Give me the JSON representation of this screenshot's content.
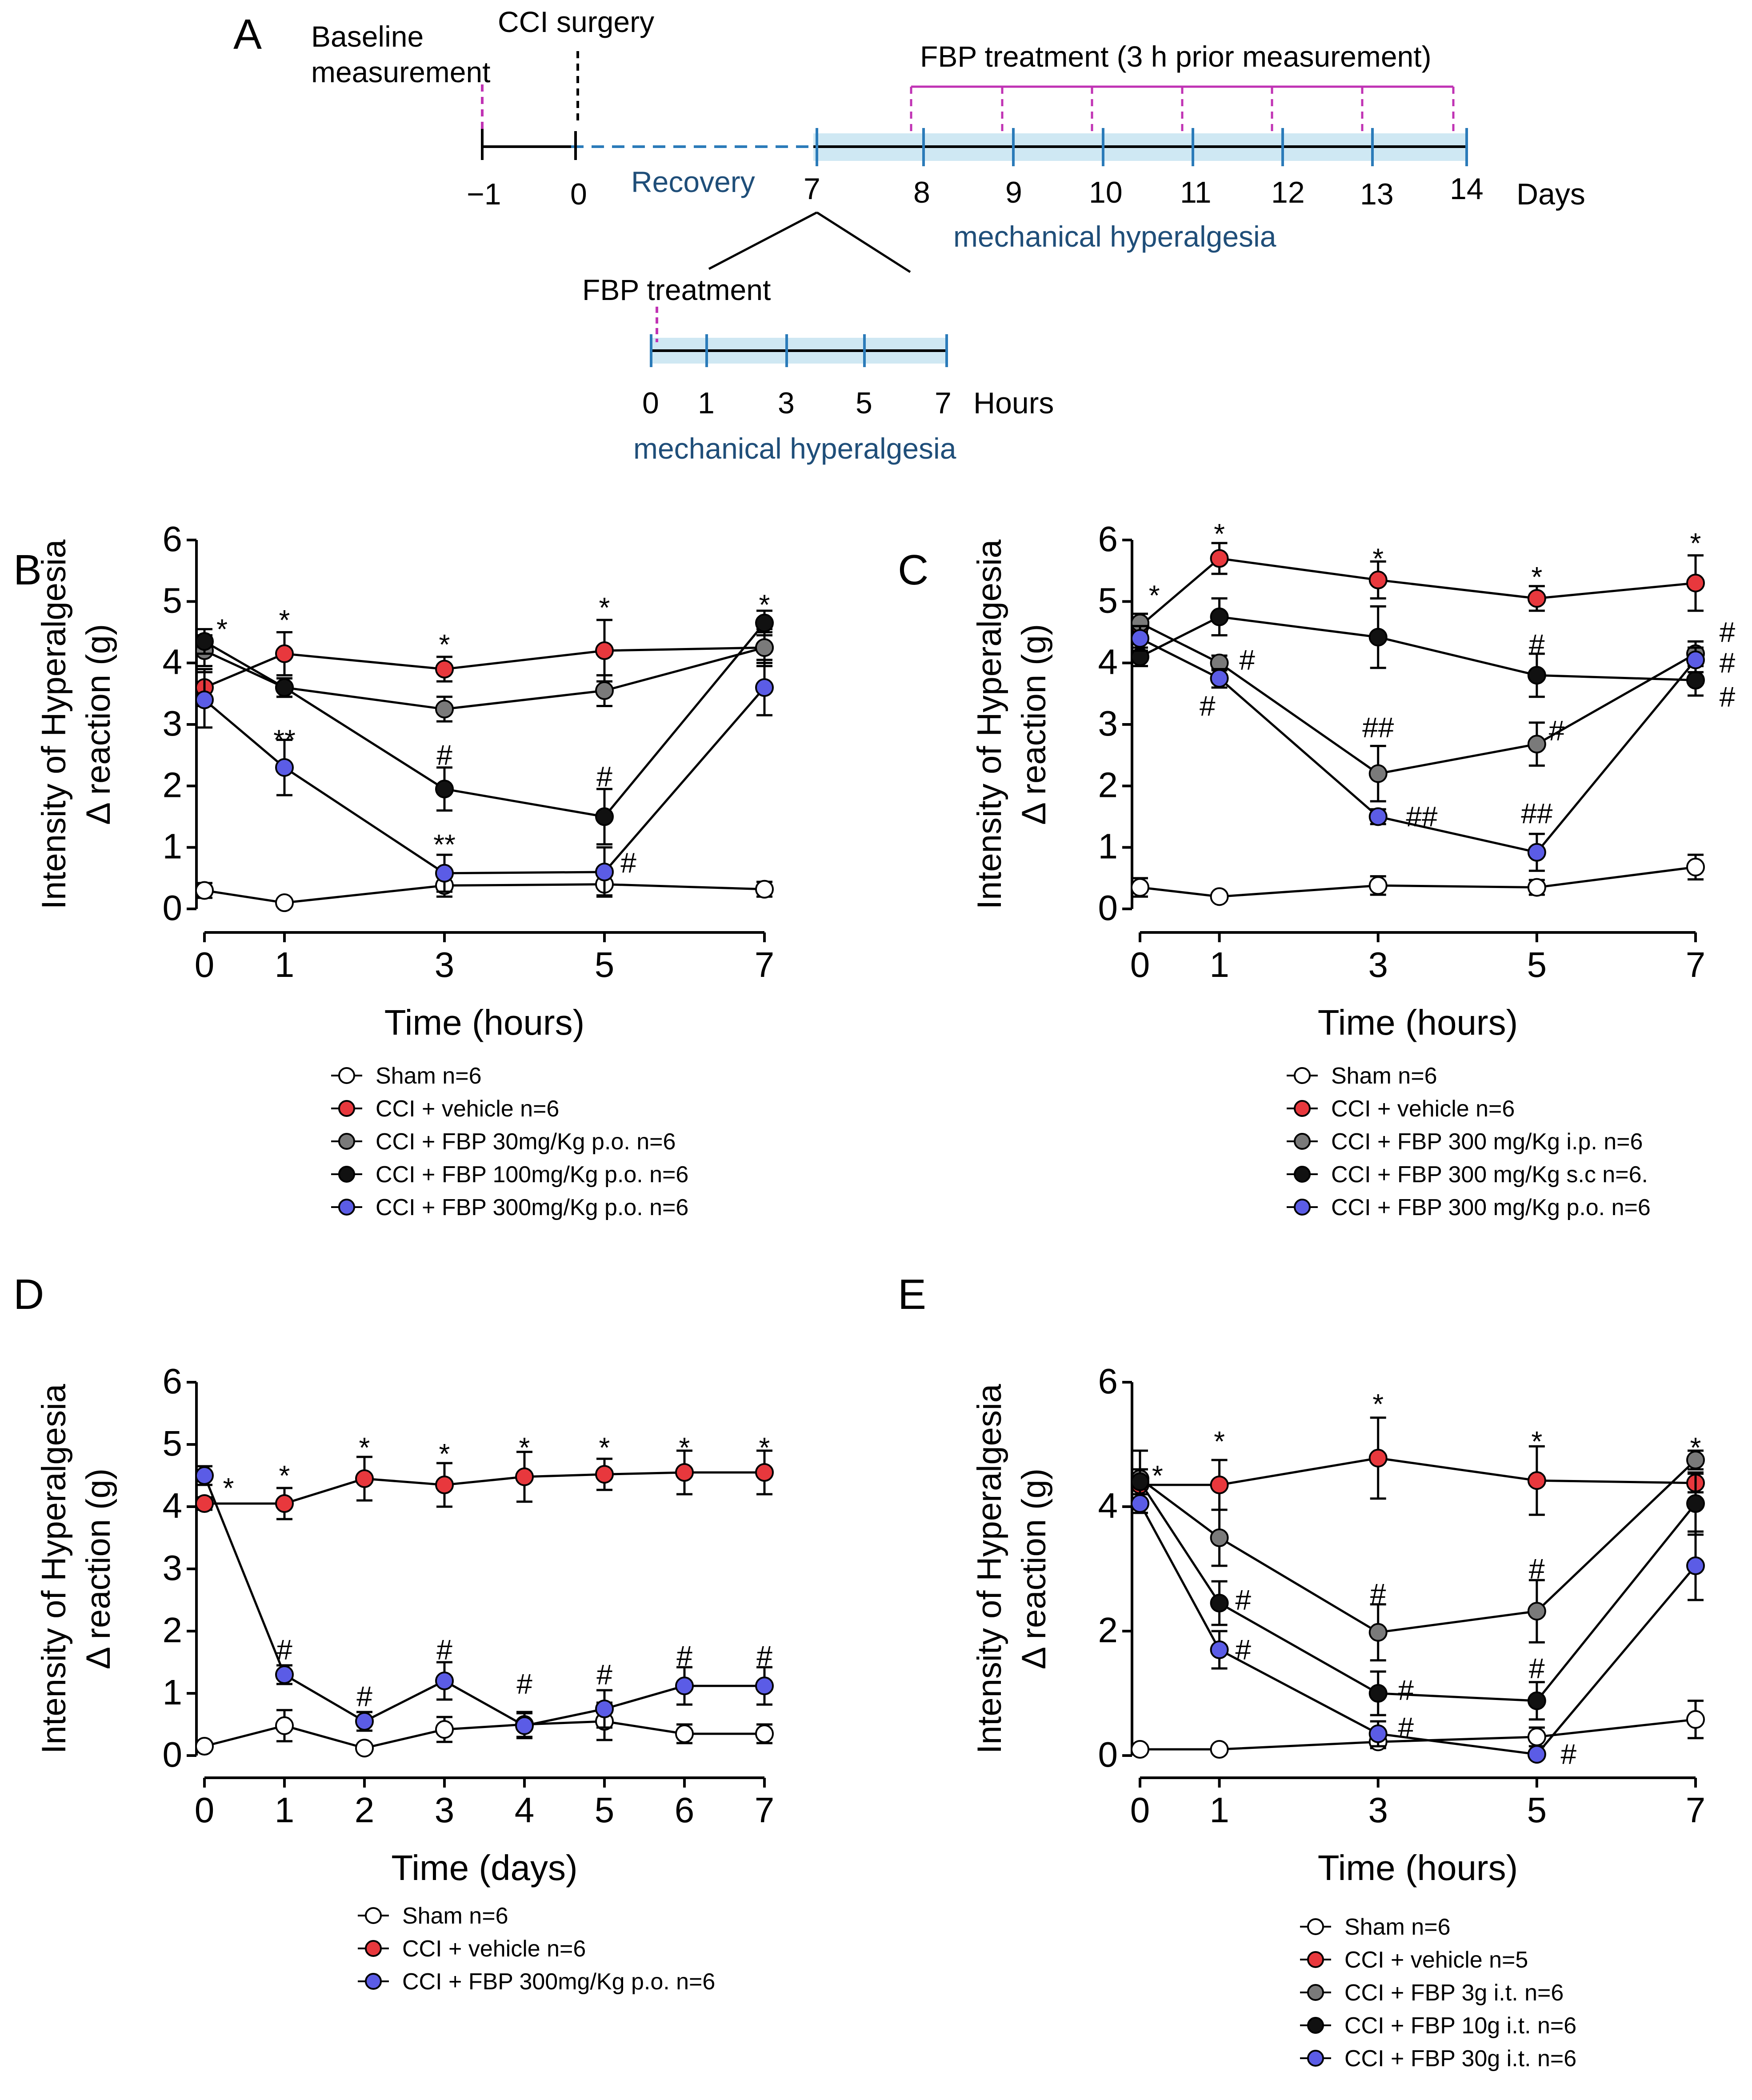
{
  "colors": {
    "sham": "#ffffff",
    "vehicle": "#e8383d",
    "gray": "#7a7a7a",
    "black": "#111111",
    "blue": "#5b5ce6",
    "timeline_band": "#cfe8f3",
    "timeline_line": "#2b7bb9",
    "dash_magenta": "#c033b4",
    "label_blue": "#1f4e79"
  },
  "timeline": {
    "panel_label": "A",
    "baseline_label": [
      "Baseline",
      "measurement"
    ],
    "surgery_label": "CCI surgery",
    "fbp_treatment_label": "FBP treatment (3 h prior measurement)",
    "recovery_label": "Recovery",
    "days_ticks": [
      "−1",
      "0",
      "7",
      "8",
      "9",
      "10",
      "11",
      "12",
      "13",
      "14"
    ],
    "days_unit": "Days",
    "mech_label": "mechanical hyperalgesia",
    "inset_treatment_label": "FBP treatment",
    "hours_ticks": [
      "0",
      "1",
      "3",
      "5",
      "7"
    ],
    "hours_unit": "Hours",
    "inset_mech_label": "mechanical hyperalgesia"
  },
  "chart_data": [
    {
      "panel": "B",
      "type": "line",
      "x": [
        0,
        1,
        3,
        5,
        7
      ],
      "x_ticks": [
        "0",
        "1",
        "3",
        "5",
        "7"
      ],
      "xlabel": "Time (hours)",
      "ylabel": [
        "Intensity of Hyperalgesia",
        "Δ reaction (g)"
      ],
      "ylim": [
        0,
        6
      ],
      "y_ticks": [
        "0",
        "1",
        "2",
        "3",
        "4",
        "5",
        "6"
      ],
      "series": [
        {
          "name": "Sham n=6",
          "color_key": "sham",
          "values": [
            0.3,
            0.1,
            0.38,
            0.4,
            0.32
          ],
          "errors": [
            0.12,
            0.05,
            0.18,
            0.18,
            0.12
          ]
        },
        {
          "name": "CCI + vehicle n=6",
          "color_key": "vehicle",
          "values": [
            3.6,
            4.15,
            3.9,
            4.2,
            4.25
          ],
          "errors": [
            0.3,
            0.35,
            0.2,
            0.5,
            0.25
          ]
        },
        {
          "name": "CCI + FBP 30mg/Kg p.o. n=6",
          "color_key": "gray",
          "values": [
            4.2,
            3.6,
            3.25,
            3.55,
            4.25
          ],
          "errors": [
            0.25,
            0.15,
            0.2,
            0.25,
            0.3
          ]
        },
        {
          "name": "CCI + FBP 100mg/Kg p.o. n=6",
          "color_key": "black",
          "values": [
            4.35,
            3.6,
            1.95,
            1.5,
            4.65
          ],
          "errors": [
            0.2,
            0.15,
            0.35,
            0.45,
            0.2
          ]
        },
        {
          "name": "CCI + FBP 300mg/Kg p.o. n=6",
          "color_key": "blue",
          "values": [
            3.4,
            2.3,
            0.58,
            0.6,
            3.6
          ],
          "errors": [
            0.45,
            0.45,
            0.3,
            0.4,
            0.45
          ]
        }
      ],
      "annotations": [
        {
          "text": "*",
          "x": 0.22,
          "y": 4.55
        },
        {
          "text": "*",
          "x": 1,
          "y": 4.7
        },
        {
          "text": "*",
          "x": 3,
          "y": 4.3
        },
        {
          "text": "*",
          "x": 5,
          "y": 4.9
        },
        {
          "text": "*",
          "x": 7,
          "y": 4.95
        },
        {
          "text": "**",
          "x": 1,
          "y": 2.75
        },
        {
          "text": "#",
          "x": 3,
          "y": 2.5
        },
        {
          "text": "**",
          "x": 3,
          "y": 1.05
        },
        {
          "text": "#",
          "x": 5,
          "y": 2.15
        },
        {
          "text": "#",
          "x": 5.3,
          "y": 0.75
        }
      ]
    },
    {
      "panel": "C",
      "type": "line",
      "x": [
        0,
        1,
        3,
        5,
        7
      ],
      "x_ticks": [
        "0",
        "1",
        "3",
        "5",
        "7"
      ],
      "xlabel": "Time (hours)",
      "ylabel": [
        "Intensity of Hyperalgesia",
        "Δ reaction (g)"
      ],
      "ylim": [
        0,
        6
      ],
      "y_ticks": [
        "0",
        "1",
        "2",
        "3",
        "4",
        "5",
        "6"
      ],
      "series": [
        {
          "name": "Sham n=6",
          "color_key": "sham",
          "values": [
            0.35,
            0.2,
            0.38,
            0.35,
            0.68
          ],
          "errors": [
            0.15,
            0.06,
            0.15,
            0.12,
            0.2
          ]
        },
        {
          "name": "CCI + vehicle n=6",
          "color_key": "vehicle",
          "values": [
            4.6,
            5.7,
            5.35,
            5.05,
            5.3
          ],
          "errors": [
            0.2,
            0.25,
            0.3,
            0.2,
            0.45
          ]
        },
        {
          "name": "CCI + FBP 300 mg/Kg i.p. n=6",
          "color_key": "gray",
          "values": [
            4.65,
            4.0,
            2.2,
            2.68,
            4.15
          ],
          "errors": [
            0.15,
            0.12,
            0.45,
            0.35,
            0.2
          ]
        },
        {
          "name": "CCI + FBP 300 mg/Kg s.c n=6.",
          "color_key": "black",
          "values": [
            4.1,
            4.75,
            4.42,
            3.8,
            3.72
          ],
          "errors": [
            0.15,
            0.3,
            0.5,
            0.35,
            0.25
          ]
        },
        {
          "name": "CCI + FBP 300 mg/Kg p.o. n=6",
          "color_key": "blue",
          "values": [
            4.4,
            3.75,
            1.5,
            0.92,
            4.05
          ],
          "errors": [
            0.2,
            0.15,
            0.12,
            0.3,
            0.2
          ]
        }
      ],
      "annotations": [
        {
          "text": "*",
          "x": 0.18,
          "y": 5.1
        },
        {
          "text": "*",
          "x": 1,
          "y": 6.1
        },
        {
          "text": "*",
          "x": 3,
          "y": 5.7
        },
        {
          "text": "*",
          "x": 5,
          "y": 5.4
        },
        {
          "text": "*",
          "x": 7,
          "y": 5.95
        },
        {
          "text": "#",
          "x": 1.35,
          "y": 4.05
        },
        {
          "text": "#",
          "x": 0.85,
          "y": 3.3
        },
        {
          "text": "##",
          "x": 3,
          "y": 2.95
        },
        {
          "text": "##",
          "x": 3.55,
          "y": 1.5
        },
        {
          "text": "#",
          "x": 5,
          "y": 4.3
        },
        {
          "text": "#",
          "x": 5.25,
          "y": 2.9
        },
        {
          "text": "##",
          "x": 5,
          "y": 1.55
        },
        {
          "text": "#",
          "x": 7.4,
          "y": 4.5
        },
        {
          "text": "#",
          "x": 7.4,
          "y": 4.0
        },
        {
          "text": "#",
          "x": 7.4,
          "y": 3.45
        }
      ]
    },
    {
      "panel": "D",
      "type": "line",
      "x": [
        0,
        1,
        2,
        3,
        4,
        5,
        6,
        7
      ],
      "x_ticks": [
        "0",
        "1",
        "2",
        "3",
        "4",
        "5",
        "6",
        "7"
      ],
      "xlabel": "Time (days)",
      "ylabel": [
        "Intensity of Hyperalgesia",
        "Δ reaction (g)"
      ],
      "ylim": [
        0,
        6
      ],
      "y_ticks": [
        "0",
        "1",
        "2",
        "3",
        "4",
        "5",
        "6"
      ],
      "series": [
        {
          "name": "Sham n=6",
          "color_key": "sham",
          "values": [
            0.15,
            0.48,
            0.12,
            0.42,
            0.5,
            0.55,
            0.35,
            0.35
          ],
          "errors": [
            0.06,
            0.25,
            0.05,
            0.2,
            0.2,
            0.3,
            0.15,
            0.15
          ]
        },
        {
          "name": "CCI + vehicle n=6",
          "color_key": "vehicle",
          "values": [
            4.05,
            4.05,
            4.45,
            4.35,
            4.48,
            4.52,
            4.55,
            4.55
          ],
          "errors": [
            0.1,
            0.25,
            0.35,
            0.35,
            0.4,
            0.25,
            0.35,
            0.35
          ]
        },
        {
          "name": "CCI + FBP 300mg/Kg p.o. n=6",
          "color_key": "blue",
          "values": [
            4.5,
            1.3,
            0.55,
            1.2,
            0.48,
            0.75,
            1.12,
            1.12
          ],
          "errors": [
            0.15,
            0.15,
            0.15,
            0.3,
            0.2,
            0.3,
            0.3,
            0.3
          ]
        }
      ],
      "annotations": [
        {
          "text": "*",
          "x": 0.3,
          "y": 4.3
        },
        {
          "text": "*",
          "x": 1,
          "y": 4.5
        },
        {
          "text": "*",
          "x": 2,
          "y": 4.95
        },
        {
          "text": "*",
          "x": 3,
          "y": 4.85
        },
        {
          "text": "*",
          "x": 4,
          "y": 4.95
        },
        {
          "text": "*",
          "x": 5,
          "y": 4.95
        },
        {
          "text": "*",
          "x": 6,
          "y": 4.95
        },
        {
          "text": "*",
          "x": 7,
          "y": 4.95
        },
        {
          "text": "#",
          "x": 1,
          "y": 1.7
        },
        {
          "text": "#",
          "x": 2,
          "y": 0.95
        },
        {
          "text": "#",
          "x": 3,
          "y": 1.7
        },
        {
          "text": "#",
          "x": 4,
          "y": 1.15
        },
        {
          "text": "#",
          "x": 5,
          "y": 1.3
        },
        {
          "text": "#",
          "x": 6,
          "y": 1.6
        },
        {
          "text": "#",
          "x": 7,
          "y": 1.6
        }
      ]
    },
    {
      "panel": "E",
      "type": "line",
      "x": [
        0,
        1,
        3,
        5,
        7
      ],
      "x_ticks": [
        "0",
        "1",
        "3",
        "5",
        "7"
      ],
      "xlabel": "Time (hours)",
      "ylabel": [
        "Intensity of Hyperalgesia",
        "Δ reaction (g)"
      ],
      "ylim": [
        0,
        6
      ],
      "y_ticks": [
        "0",
        "2",
        "4",
        "6"
      ],
      "series": [
        {
          "name": "Sham n=6",
          "color_key": "sham",
          "values": [
            0.1,
            0.1,
            0.22,
            0.3,
            0.58
          ],
          "errors": [
            0.05,
            0.05,
            0.1,
            0.15,
            0.3
          ]
        },
        {
          "name": "CCI + vehicle n=5",
          "color_key": "vehicle",
          "values": [
            4.35,
            4.35,
            4.78,
            4.42,
            4.38
          ],
          "errors": [
            0.15,
            0.4,
            0.65,
            0.55,
            0.15
          ]
        },
        {
          "name": "CCI + FBP 3g i.t. n=6",
          "color_key": "gray",
          "values": [
            4.45,
            3.5,
            1.98,
            2.32,
            4.75
          ],
          "errors": [
            0.45,
            0.45,
            0.45,
            0.5,
            0.15
          ]
        },
        {
          "name": "CCI + FBP 10g i.t. n=6",
          "color_key": "black",
          "values": [
            4.4,
            2.45,
            1.0,
            0.88,
            4.05
          ],
          "errors": [
            0.2,
            0.35,
            0.35,
            0.3,
            0.5
          ]
        },
        {
          "name": "CCI + FBP 30g i.t. n=6",
          "color_key": "blue",
          "values": [
            4.05,
            1.7,
            0.35,
            0.02,
            3.05
          ],
          "errors": [
            0.15,
            0.3,
            0.2,
            0.05,
            0.55
          ]
        }
      ],
      "annotations": [
        {
          "text": "*",
          "x": 0.22,
          "y": 4.5
        },
        {
          "text": "*",
          "x": 1,
          "y": 5.05
        },
        {
          "text": "*",
          "x": 3,
          "y": 5.65
        },
        {
          "text": "*",
          "x": 5,
          "y": 5.05
        },
        {
          "text": "*",
          "x": 7,
          "y": 4.95
        },
        {
          "text": "#",
          "x": 1.3,
          "y": 2.5
        },
        {
          "text": "#",
          "x": 1.3,
          "y": 1.7
        },
        {
          "text": "#",
          "x": 3,
          "y": 2.6
        },
        {
          "text": "#",
          "x": 3.35,
          "y": 1.05
        },
        {
          "text": "#",
          "x": 3.35,
          "y": 0.45
        },
        {
          "text": "#",
          "x": 5,
          "y": 3.0
        },
        {
          "text": "#",
          "x": 5,
          "y": 1.4
        },
        {
          "text": "#",
          "x": 5.4,
          "y": 0.02
        }
      ]
    }
  ]
}
